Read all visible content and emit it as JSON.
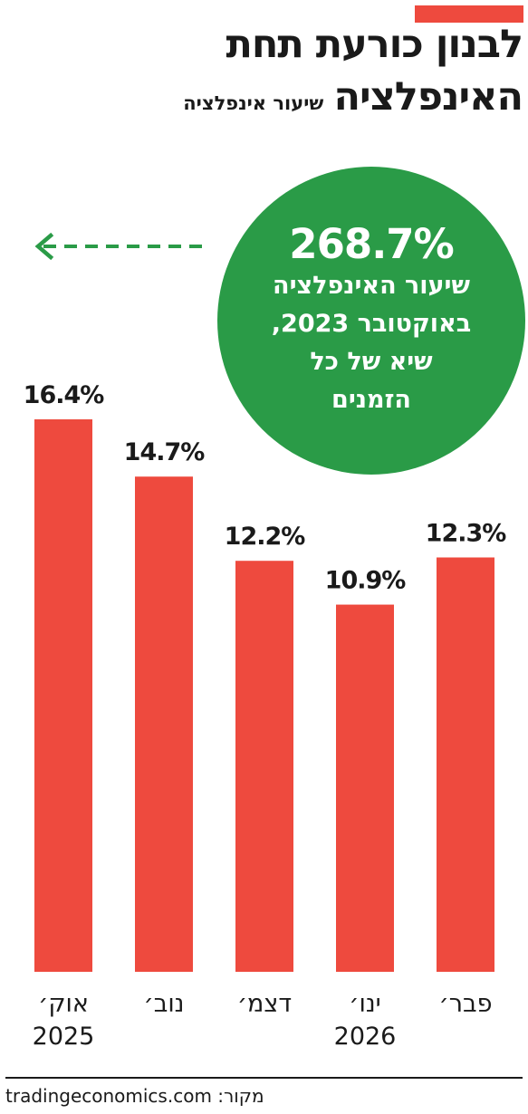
{
  "colors": {
    "accent": "#ee4a3e",
    "bar": "#ee4a3e",
    "callout": "#2a9b47",
    "text": "#1a1a1a"
  },
  "header": {
    "title": "לבנון כורעת תחת",
    "subtitle_main": "האינפלציה",
    "subtitle_sub": "שיעור אינפלציה"
  },
  "callout": {
    "value": "268.7%",
    "lines": [
      "שיעור האינפלציה",
      "באוקטובר 2023,",
      "שיא של כל",
      "הזמנים"
    ],
    "arrow_icon": "dashed-arrow-left-icon"
  },
  "chart_data": {
    "type": "bar",
    "categories": [
      [
        "אוק׳",
        "2025"
      ],
      [
        "נוב׳",
        ""
      ],
      [
        "דצמ׳",
        ""
      ],
      [
        "ינו׳",
        "2026"
      ],
      [
        "פבר׳",
        ""
      ]
    ],
    "values": [
      16.4,
      14.7,
      12.2,
      10.9,
      12.3
    ],
    "value_labels": [
      "16.4%",
      "14.7%",
      "12.2%",
      "10.9%",
      "12.3%"
    ],
    "ylim": [
      0,
      16.4
    ],
    "grid": false
  },
  "footer": {
    "source_label": "מקור:",
    "source_value": "tradingeconomics.com"
  }
}
